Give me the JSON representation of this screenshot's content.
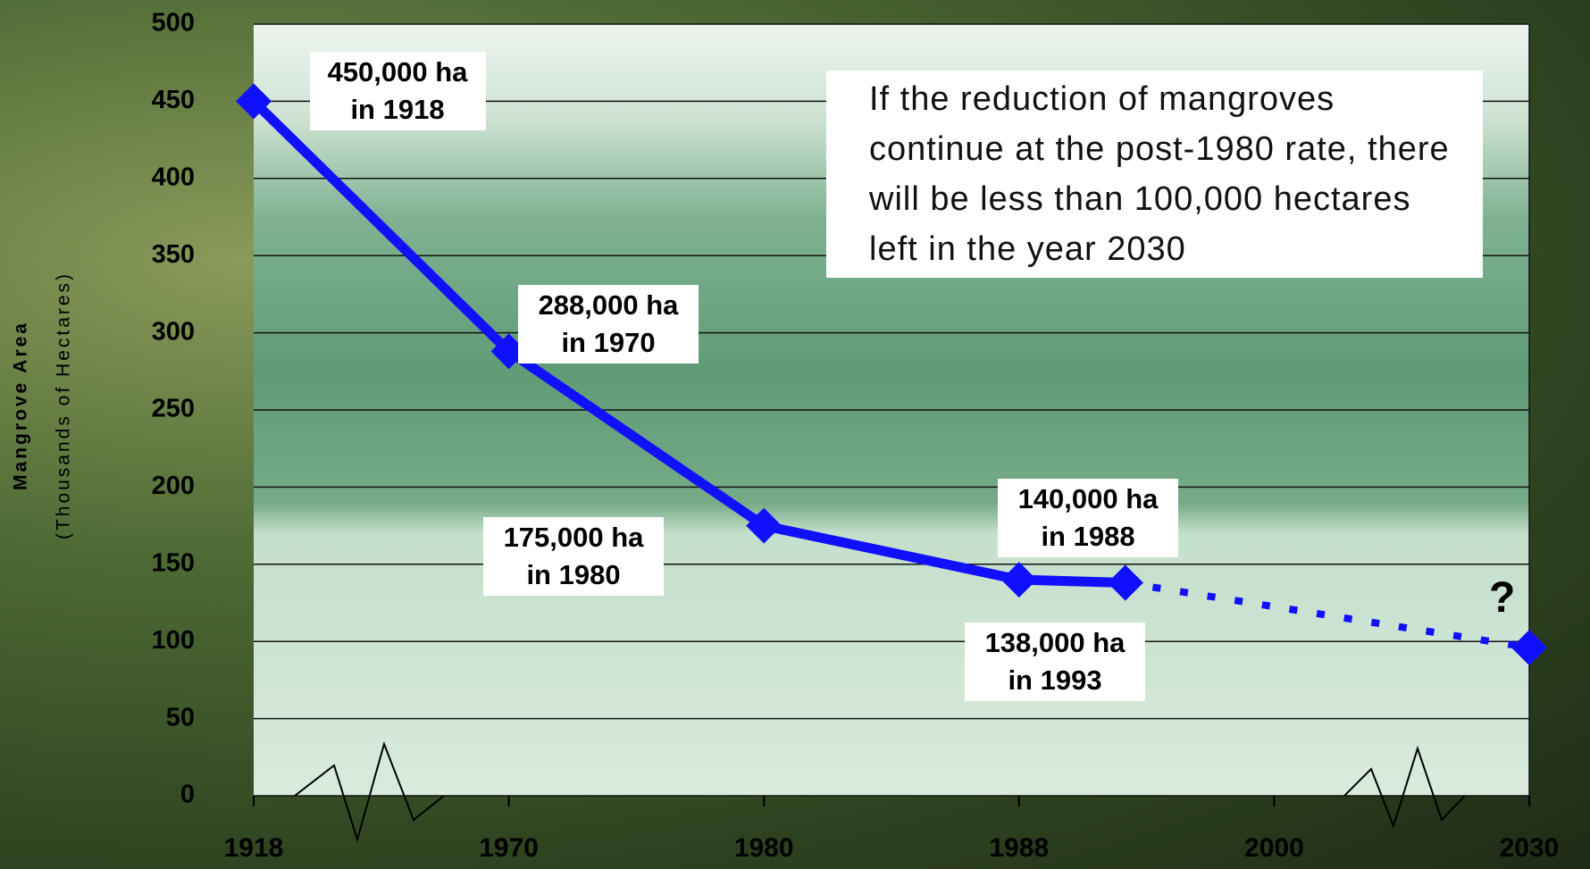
{
  "chart_data": {
    "type": "line",
    "ylabel": "Mangrove Area",
    "ylabel_note": "(Thousands of Hectares)",
    "x": [
      1918,
      1970,
      1980,
      1988,
      1993,
      2030
    ],
    "xticks": [
      1918,
      1970,
      1980,
      1988,
      2000,
      2030
    ],
    "ylim": [
      0,
      500
    ],
    "yticks": [
      0,
      50,
      100,
      150,
      200,
      250,
      300,
      350,
      400,
      450,
      500
    ],
    "grid": true,
    "series": [
      {
        "color": "#1010ff",
        "line_style": "solid",
        "values": [
          450,
          288,
          175,
          140,
          138,
          null
        ],
        "value_labels": [
          "450,000 ha in 1918",
          "288,000 ha in 1970",
          "175,000 ha in 1980",
          "140,000 ha in 1988",
          "138,000 ha in 1993",
          null
        ]
      },
      {
        "color": "#1010ff",
        "line_style": "dotted",
        "values": [
          null,
          null,
          null,
          null,
          138,
          96
        ]
      }
    ],
    "annotations": [
      {
        "text": "If the reduction of mangroves continue at the post-1980 rate, there will be less than 100,000 hectares left in the year 2030"
      },
      {
        "text": "?"
      }
    ]
  }
}
